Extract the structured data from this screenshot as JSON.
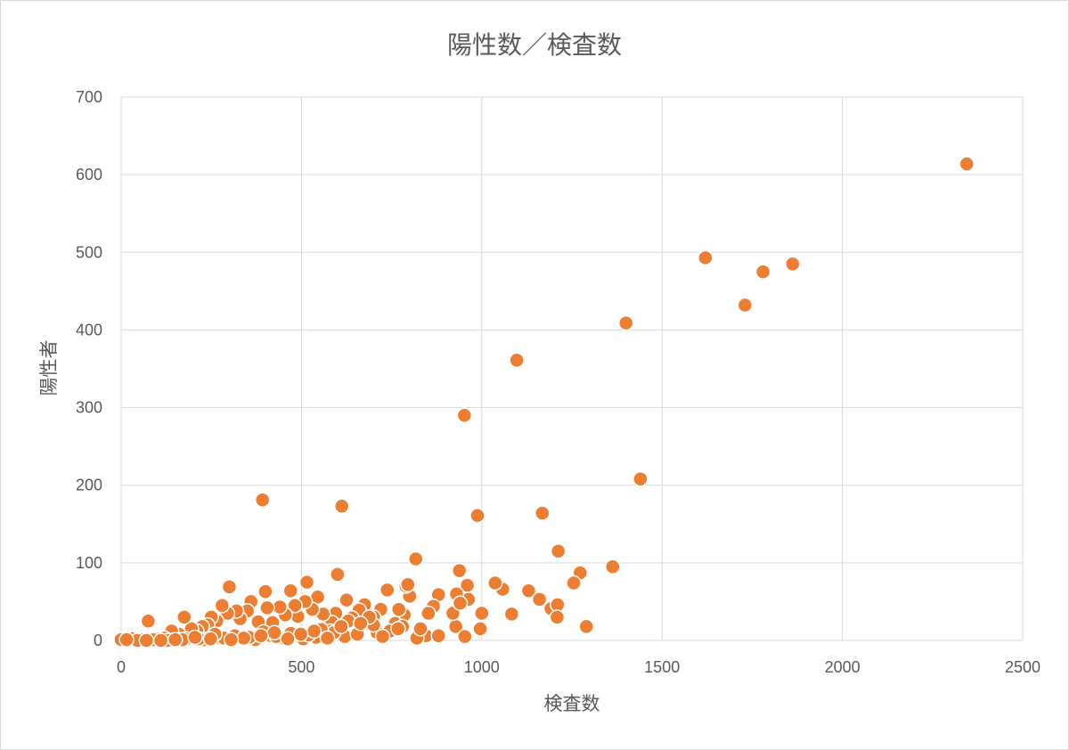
{
  "chart_data": {
    "type": "scatter",
    "title": "陽性数／検査数",
    "xlabel": "検査数",
    "ylabel": "陽性者",
    "xlim": [
      0,
      2500
    ],
    "ylim": [
      0,
      700
    ],
    "x_ticks": [
      "0",
      "500",
      "1000",
      "1500",
      "2000",
      "2500"
    ],
    "y_ticks": [
      "0",
      "100",
      "200",
      "300",
      "400",
      "500",
      "600",
      "700"
    ],
    "grid": true,
    "legend": "none",
    "point_color": "#ED7D31",
    "series": [
      {
        "x": [
          2345,
          1620,
          1862,
          1780,
          1730,
          1400,
          1097,
          952,
          1440,
          392,
          612,
          988,
          1168,
          1212,
          817,
          938,
          1363,
          1273,
          1255,
          1058,
          1130,
          1037,
          1160,
          1192,
          1210,
          1209,
          1083,
          1290,
          1000,
          996,
          960,
          963,
          930,
          928,
          920,
          940,
          953,
          880,
          866,
          852,
          845,
          800,
          790,
          785,
          770,
          752,
          738,
          720,
          700,
          690,
          675,
          660,
          640,
          625,
          600,
          595,
          585,
          560,
          545,
          530,
          515,
          510,
          490,
          482,
          470,
          455,
          440,
          420,
          405,
          400,
          380,
          360,
          350,
          330,
          320,
          300,
          295,
          280,
          265,
          250,
          240,
          225,
          210,
          195,
          175,
          160,
          145,
          140,
          120,
          100,
          75,
          60,
          30,
          0,
          820,
          760,
          710,
          650,
          620,
          580,
          540,
          505,
          450,
          415,
          372,
          345,
          310,
          270,
          230,
          180,
          90,
          45,
          880,
          830,
          780,
          745,
          700,
          655,
          630,
          590,
          555,
          520,
          470,
          430,
          395,
          355,
          315,
          285,
          260,
          215,
          170,
          130,
          795,
          768,
          725,
          688,
          664,
          610,
          572,
          535,
          498,
          462,
          425,
          388,
          340,
          305,
          248,
          205,
          150,
          110,
          70,
          15
        ],
        "y": [
          614,
          493,
          485,
          475,
          432,
          409,
          361,
          290,
          208,
          181,
          173,
          161,
          164,
          115,
          105,
          90,
          95,
          87,
          74,
          66,
          64,
          74,
          53,
          41,
          46,
          30,
          34,
          18,
          35,
          15,
          71,
          53,
          60,
          18,
          35,
          48,
          5,
          59,
          44,
          35,
          6,
          57,
          70,
          33,
          40,
          14,
          65,
          40,
          30,
          21,
          46,
          39,
          29,
          52,
          85,
          35,
          23,
          34,
          56,
          40,
          75,
          50,
          31,
          45,
          64,
          33,
          43,
          23,
          42,
          63,
          24,
          50,
          38,
          28,
          38,
          69,
          35,
          45,
          25,
          30,
          20,
          18,
          12,
          15,
          30,
          8,
          5,
          12,
          3,
          2,
          25,
          1,
          2,
          1,
          3,
          22,
          10,
          8,
          5,
          12,
          4,
          2,
          3,
          6,
          1,
          5,
          2,
          4,
          1,
          2,
          1,
          0,
          6,
          15,
          18,
          12,
          20,
          8,
          25,
          10,
          14,
          7,
          9,
          5,
          11,
          4,
          6,
          3,
          8,
          2,
          1,
          0,
          72,
          15,
          5,
          30,
          22,
          18,
          3,
          12,
          8,
          2,
          10,
          6,
          3,
          1,
          2,
          4,
          1,
          0,
          0,
          1
        ]
      }
    ]
  }
}
